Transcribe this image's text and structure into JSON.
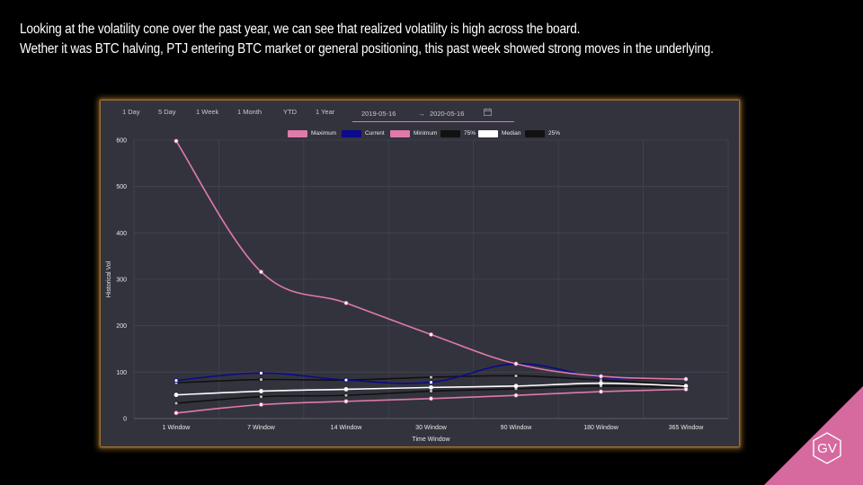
{
  "headline": {
    "line1": "Looking at the volatility cone over the past year, we can see that realized volatility is high across the board.",
    "line2": "Wether it was BTC halving, PTJ entering BTC market or general positioning, this past week showed strong moves in the underlying."
  },
  "controls": {
    "ranges": [
      "1 Day",
      "5 Day",
      "1 Week",
      "1 Month",
      "YTD",
      "1 Year"
    ],
    "date_from": "2019-05-16",
    "date_arrow": "→",
    "date_to": "2020-05-16"
  },
  "logo": {
    "text": "GV",
    "color": "#d66a9f"
  },
  "chart_data": {
    "type": "line",
    "xlabel": "Time Window",
    "ylabel": "Historical Vol",
    "ylim": [
      0,
      600
    ],
    "yticks": [
      0,
      100,
      200,
      300,
      400,
      500,
      600
    ],
    "grid": true,
    "legend_position": "top-center",
    "categories": [
      "1 Window",
      "7 Window",
      "14 Window",
      "30 Window",
      "90 Window",
      "180 Window",
      "365 Window"
    ],
    "series": [
      {
        "name": "Maximum",
        "color": "#e07aa8",
        "values": [
          598,
          316,
          249,
          181,
          118,
          91,
          85
        ]
      },
      {
        "name": "Current",
        "color": "#0a0a8c",
        "values": [
          82,
          98,
          83,
          78,
          118,
          89,
          85
        ]
      },
      {
        "name": "Minimum",
        "color": "#e07aa8",
        "values": [
          12,
          30,
          37,
          43,
          50,
          58,
          63
        ]
      },
      {
        "name": "75%",
        "color": "#111111",
        "values": [
          77,
          84,
          83,
          89,
          92,
          83,
          72
        ]
      },
      {
        "name": "Median",
        "color": "#ffffff",
        "values": [
          51,
          59,
          63,
          67,
          70,
          76,
          70
        ]
      },
      {
        "name": "25%",
        "color": "#111111",
        "values": [
          33,
          47,
          50,
          59,
          64,
          70,
          67
        ]
      }
    ]
  }
}
